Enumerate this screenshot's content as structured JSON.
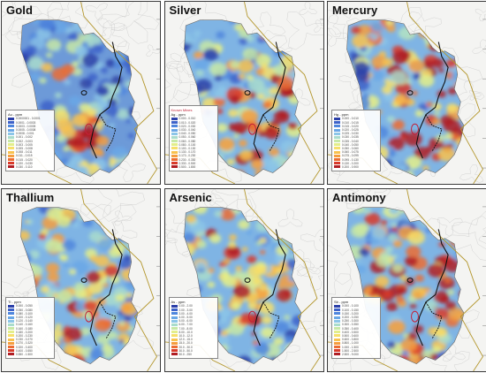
{
  "panels": [
    {
      "title": "Gold",
      "legend_heading": "Au - ppm",
      "legend_note": "",
      "intensity": 0.15,
      "hot_zones": [
        [
          0.45,
          0.72
        ],
        [
          0.55,
          0.68
        ],
        [
          0.38,
          0.35
        ],
        [
          0.62,
          0.8
        ]
      ],
      "legend_ranges": [
        "0.0000001 - 0.0001",
        "0.0001 - 0.0003",
        "0.0003 - 0.0005",
        "0.0005 - 0.0008",
        "0.0008 - 0.001",
        "0.001 - 0.002",
        "0.002 - 0.003",
        "0.003 - 0.005",
        "0.005 - 0.008",
        "0.008 - 0.011",
        "0.011 - 0.015",
        "0.015 - 0.020",
        "0.020 - 0.030",
        "0.030 - 0.110"
      ]
    },
    {
      "title": "Silver",
      "legend_heading": "Ag - ppm",
      "legend_note": "Known Mines",
      "intensity": 0.55,
      "hot_zones": [
        [
          0.7,
          0.55
        ],
        [
          0.75,
          0.7
        ],
        [
          0.45,
          0.62
        ],
        [
          0.55,
          0.8
        ]
      ],
      "legend_ranges": [
        "0.000 - 0.010",
        "0.010 - 0.020",
        "0.020 - 0.030",
        "0.030 - 0.040",
        "0.040 - 0.050",
        "0.050 - 0.060",
        "0.060 - 0.080",
        "0.080 - 0.100",
        "0.100 - 0.130",
        "0.130 - 0.170",
        "0.170 - 0.230",
        "0.230 - 0.330",
        "0.330 - 0.500",
        "0.500 - 1.800"
      ]
    },
    {
      "title": "Mercury",
      "legend_heading": "Hg - ppm",
      "legend_note": "",
      "intensity": 0.62,
      "hot_zones": [
        [
          0.72,
          0.4
        ],
        [
          0.78,
          0.62
        ],
        [
          0.5,
          0.7
        ],
        [
          0.6,
          0.8
        ],
        [
          0.4,
          0.3
        ]
      ],
      "legend_ranges": [
        "0.000 - 0.010",
        "0.010 - 0.015",
        "0.015 - 0.020",
        "0.020 - 0.025",
        "0.025 - 0.030",
        "0.030 - 0.035",
        "0.035 - 0.040",
        "0.040 - 0.050",
        "0.050 - 0.060",
        "0.060 - 0.075",
        "0.075 - 0.095",
        "0.095 - 0.130",
        "0.130 - 0.200",
        "0.200 - 0.900"
      ]
    },
    {
      "title": "Thallium",
      "legend_heading": "Tl - ppm",
      "legend_note": "",
      "intensity": 0.5,
      "hot_zones": [
        [
          0.3,
          0.4
        ],
        [
          0.4,
          0.7
        ],
        [
          0.65,
          0.55
        ],
        [
          0.45,
          0.85
        ]
      ],
      "legend_ranges": [
        "0.000 - 0.050",
        "0.050 - 0.080",
        "0.080 - 0.100",
        "0.100 - 0.120",
        "0.120 - 0.140",
        "0.140 - 0.160",
        "0.160 - 0.180",
        "0.180 - 0.200",
        "0.200 - 0.230",
        "0.230 - 0.270",
        "0.270 - 0.320",
        "0.320 - 0.400",
        "0.400 - 0.550",
        "0.550 - 1.500"
      ]
    },
    {
      "title": "Arsenic",
      "legend_heading": "As - ppm",
      "legend_note": "",
      "intensity": 0.45,
      "hot_zones": [
        [
          0.5,
          0.45
        ],
        [
          0.55,
          0.75
        ],
        [
          0.72,
          0.6
        ],
        [
          0.35,
          0.3
        ]
      ],
      "legend_ranges": [
        "0.00 - 2.00",
        "2.00 - 3.00",
        "3.00 - 4.00",
        "4.00 - 5.00",
        "5.00 - 6.00",
        "6.00 - 7.00",
        "7.00 - 8.00",
        "8.00 - 10.0",
        "10.0 - 12.0",
        "12.0 - 15.0",
        "15.0 - 20.0",
        "20.0 - 30.0",
        "30.0 - 50.0",
        "50.0 - 250"
      ]
    },
    {
      "title": "Antimony",
      "legend_heading": "Sb - ppm",
      "legend_note": "",
      "intensity": 0.68,
      "hot_zones": [
        [
          0.7,
          0.35
        ],
        [
          0.75,
          0.6
        ],
        [
          0.6,
          0.8
        ],
        [
          0.4,
          0.55
        ],
        [
          0.55,
          0.45
        ]
      ],
      "legend_ranges": [
        "0.000 - 0.100",
        "0.100 - 0.150",
        "0.150 - 0.200",
        "0.200 - 0.250",
        "0.250 - 0.300",
        "0.300 - 0.350",
        "0.350 - 0.400",
        "0.400 - 0.500",
        "0.500 - 0.600",
        "0.600 - 0.800",
        "0.800 - 1.000",
        "1.000 - 1.500",
        "1.500 - 2.500",
        "2.500 - 9.000"
      ]
    }
  ],
  "legend_colors": [
    "#2b3fa8",
    "#3d62c9",
    "#4f86dd",
    "#6aa7e6",
    "#8cc6e8",
    "#a9dccc",
    "#c7e8a6",
    "#e3ee8a",
    "#f6e06b",
    "#f8c24f",
    "#f59d3e",
    "#ec6d31",
    "#d93a2a",
    "#b01e24"
  ]
}
